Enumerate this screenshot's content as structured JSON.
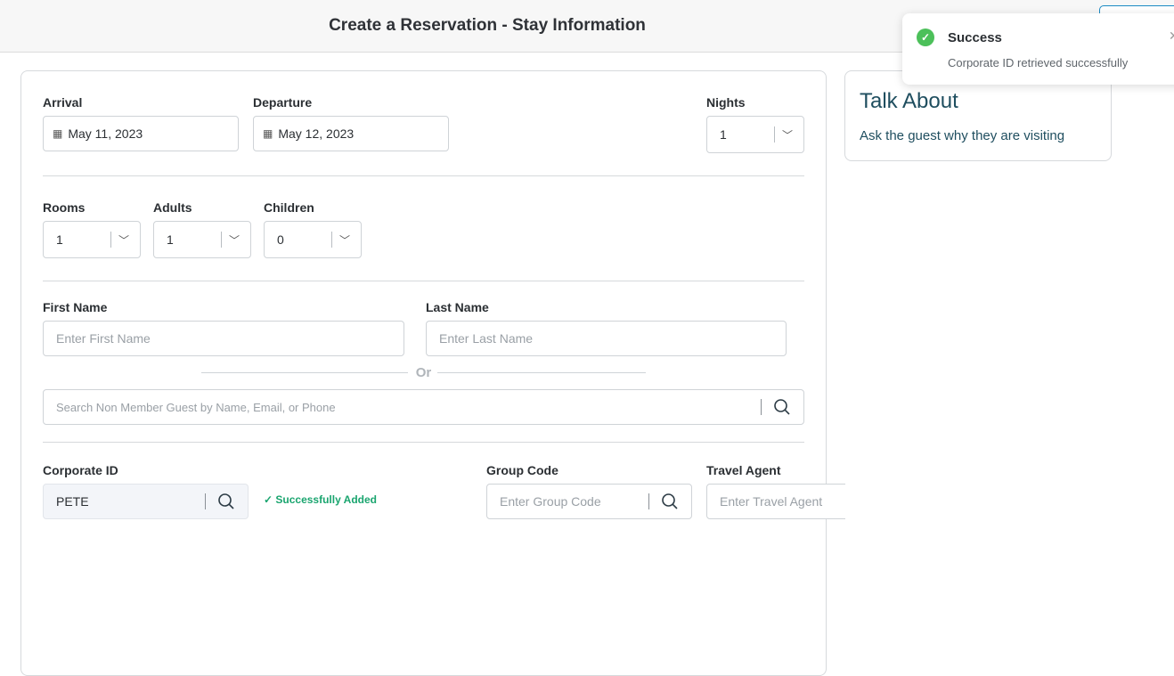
{
  "header": {
    "title": "Create a Reservation - Stay Information"
  },
  "stay": {
    "arrival": {
      "label": "Arrival",
      "value": "May 11, 2023"
    },
    "departure": {
      "label": "Departure",
      "value": "May 12, 2023"
    },
    "nights": {
      "label": "Nights",
      "value": "1"
    },
    "rooms": {
      "label": "Rooms",
      "value": "1"
    },
    "adults": {
      "label": "Adults",
      "value": "1"
    },
    "children": {
      "label": "Children",
      "value": "0"
    }
  },
  "guest": {
    "first_name": {
      "label": "First Name",
      "placeholder": "Enter First Name"
    },
    "last_name": {
      "label": "Last Name",
      "placeholder": "Enter Last Name"
    },
    "or": "Or",
    "search_placeholder": "Search Non Member Guest by Name, Email, or Phone"
  },
  "codes": {
    "corporate": {
      "label": "Corporate ID",
      "value": "PETE",
      "status": "Successfully Added"
    },
    "group": {
      "label": "Group Code",
      "placeholder": "Enter Group Code"
    },
    "agent": {
      "label": "Travel Agent",
      "placeholder": "Enter Travel Agent"
    }
  },
  "talk": {
    "title": "Talk About",
    "text": "Ask the guest why they are visiting"
  },
  "toast": {
    "title": "Success",
    "message": "Corporate ID retrieved successfully"
  },
  "colors": {
    "success": "#4cc05a",
    "success_text": "#1aa56f",
    "accent": "#1b8ac4",
    "talk_text": "#1f4e5f"
  }
}
